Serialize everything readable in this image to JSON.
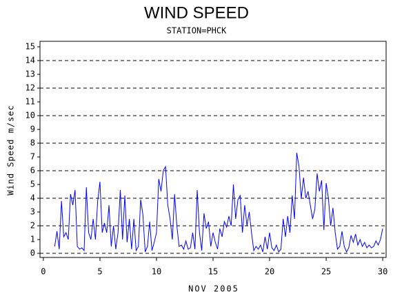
{
  "chart_data": {
    "type": "line",
    "title": "WIND SPEED",
    "subtitle": "STATION=PHCK",
    "x_label": "NOV 2005",
    "y_label": "Wind Speed m/sec",
    "xlim": [
      -0.3,
      30.3
    ],
    "xticks": [
      0,
      5,
      10,
      15,
      20,
      25,
      30
    ],
    "ylim": [
      -0.3,
      15.4
    ],
    "yticks": [
      0,
      1,
      2,
      3,
      4,
      5,
      6,
      7,
      8,
      9,
      10,
      11,
      12,
      13,
      14,
      15
    ],
    "grid": true,
    "series": [
      {
        "color": "#0000ff",
        "x": [
          1,
          1.2,
          1.4,
          1.6,
          1.8,
          2,
          2.2,
          2.4,
          2.6,
          2.8,
          3,
          3.2,
          3.4,
          3.6,
          3.8,
          4,
          4.2,
          4.4,
          4.6,
          4.8,
          5,
          5.2,
          5.4,
          5.6,
          5.8,
          6,
          6.2,
          6.4,
          6.6,
          6.8,
          7,
          7.2,
          7.4,
          7.6,
          7.8,
          8,
          8.2,
          8.4,
          8.6,
          8.8,
          9,
          9.2,
          9.4,
          9.6,
          9.8,
          10,
          10.2,
          10.4,
          10.6,
          10.8,
          11,
          11.2,
          11.4,
          11.6,
          11.8,
          12,
          12.2,
          12.4,
          12.6,
          12.8,
          13,
          13.2,
          13.4,
          13.6,
          13.8,
          14,
          14.2,
          14.4,
          14.6,
          14.8,
          15,
          15.2,
          15.4,
          15.6,
          15.8,
          16,
          16.2,
          16.4,
          16.6,
          16.8,
          17,
          17.2,
          17.4,
          17.6,
          17.8,
          18,
          18.2,
          18.4,
          18.6,
          18.8,
          19,
          19.2,
          19.4,
          19.6,
          19.8,
          20,
          20.2,
          20.4,
          20.6,
          20.8,
          21,
          21.2,
          21.4,
          21.6,
          21.8,
          22,
          22.2,
          22.4,
          22.6,
          22.8,
          23,
          23.2,
          23.4,
          23.6,
          23.8,
          24,
          24.2,
          24.4,
          24.6,
          24.8,
          25,
          25.2,
          25.4,
          25.6,
          25.8,
          26,
          26.2,
          26.4,
          26.6,
          26.8,
          27,
          27.2,
          27.4,
          27.6,
          27.8,
          28,
          28.2,
          28.4,
          28.6,
          28.8,
          29,
          29.2,
          29.4,
          29.6,
          29.8,
          30
        ],
        "values": [
          0.5,
          1.6,
          0.3,
          3.8,
          1.2,
          1.5,
          1.0,
          4.3,
          3.5,
          4.6,
          0.5,
          0.3,
          0.4,
          0.2,
          4.8,
          1.5,
          1.0,
          2.5,
          1.0,
          3.8,
          5.2,
          1.5,
          2.2,
          1.5,
          3.5,
          0.5,
          2.0,
          0.3,
          1.5,
          4.6,
          1.0,
          4.2,
          0.8,
          2.5,
          0.3,
          2.5,
          0.2,
          0.5,
          3.9,
          2.8,
          0.1,
          0.5,
          2.3,
          0.2,
          0.8,
          1.5,
          5.4,
          4.5,
          6.0,
          6.3,
          3.5,
          2.5,
          1.0,
          4.3,
          2.0,
          0.5,
          0.6,
          0.3,
          0.9,
          0.3,
          0.4,
          1.5,
          0.3,
          4.6,
          1.5,
          0.2,
          2.9,
          1.8,
          2.3,
          0.5,
          1.5,
          0.8,
          0.3,
          1.8,
          1.2,
          2.3,
          1.9,
          2.7,
          2.0,
          5.0,
          2.5,
          3.9,
          4.2,
          1.5,
          3.5,
          2.0,
          3.0,
          1.5,
          0.2,
          0.5,
          0.3,
          0.6,
          0.1,
          1.2,
          0.3,
          1.5,
          0.4,
          0.2,
          0.6,
          0.1,
          0.3,
          2.5,
          1.2,
          2.7,
          1.5,
          4.2,
          2.5,
          7.3,
          6.3,
          4.0,
          5.5,
          4.0,
          4.5,
          3.5,
          2.5,
          3.2,
          5.8,
          4.5,
          5.3,
          1.7,
          5.1,
          4.0,
          2.0,
          3.3,
          1.5,
          0.3,
          0.5,
          1.6,
          0.5,
          0.1,
          0.4,
          1.3,
          0.8,
          1.4,
          0.6,
          1.0,
          0.5,
          0.8,
          0.4,
          0.6,
          0.4,
          0.5,
          0.9,
          0.6,
          1.0,
          1.8
        ]
      }
    ]
  }
}
